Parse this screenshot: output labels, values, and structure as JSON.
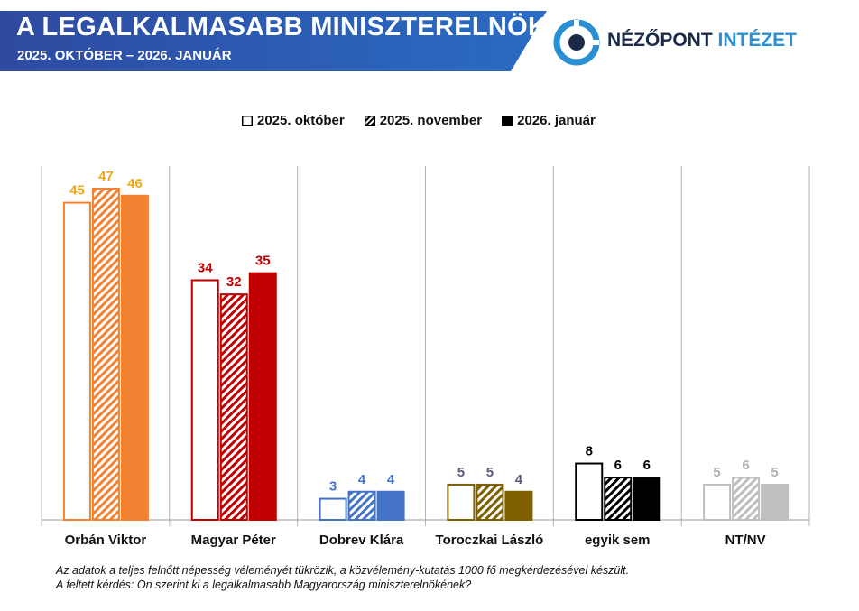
{
  "header": {
    "title": "A LEGALKALMASABB MINISZTERELNÖK",
    "subtitle": "2025. OKTÓBER – 2026. JANUÁR"
  },
  "brand": {
    "name_part1": "NÉZŐPONT",
    "name_part2": "INTÉZET"
  },
  "legend": [
    {
      "label": "2025. október",
      "style": "outline"
    },
    {
      "label": "2025. november",
      "style": "hatched"
    },
    {
      "label": "2026. január",
      "style": "filled"
    }
  ],
  "chart_data": {
    "type": "bar",
    "categories": [
      "Orbán Viktor",
      "Magyar Péter",
      "Dobrev Klára",
      "Toroczkai László",
      "egyik sem",
      "NT/NV"
    ],
    "series": [
      {
        "name": "2025. október",
        "values": [
          45,
          34,
          3,
          5,
          8,
          5
        ]
      },
      {
        "name": "2025. november",
        "values": [
          47,
          32,
          4,
          5,
          6,
          6
        ]
      },
      {
        "name": "2026. január",
        "values": [
          46,
          35,
          4,
          4,
          6,
          5
        ]
      }
    ],
    "category_colors": [
      "#f08232",
      "#c00000",
      "#4472c4",
      "#7f6000",
      "#000000",
      "#bfbfbf"
    ],
    "label_colors": [
      "#f2a71b",
      "#c00000",
      "#4472c4",
      "#5a5a78",
      "#000000",
      "#b0b0b0"
    ],
    "ylim": [
      0,
      47
    ],
    "grid": false,
    "legend_position": "top"
  },
  "notes": {
    "line1": "Az adatok a teljes felnőtt népesség véleményét tükrözik, a közvélemény-kutatás 1000 fő megkérdezésével készült.",
    "line2": "A feltett kérdés: Ön szerint ki a legalkalmasabb Magyarország miniszterelnökének?"
  }
}
